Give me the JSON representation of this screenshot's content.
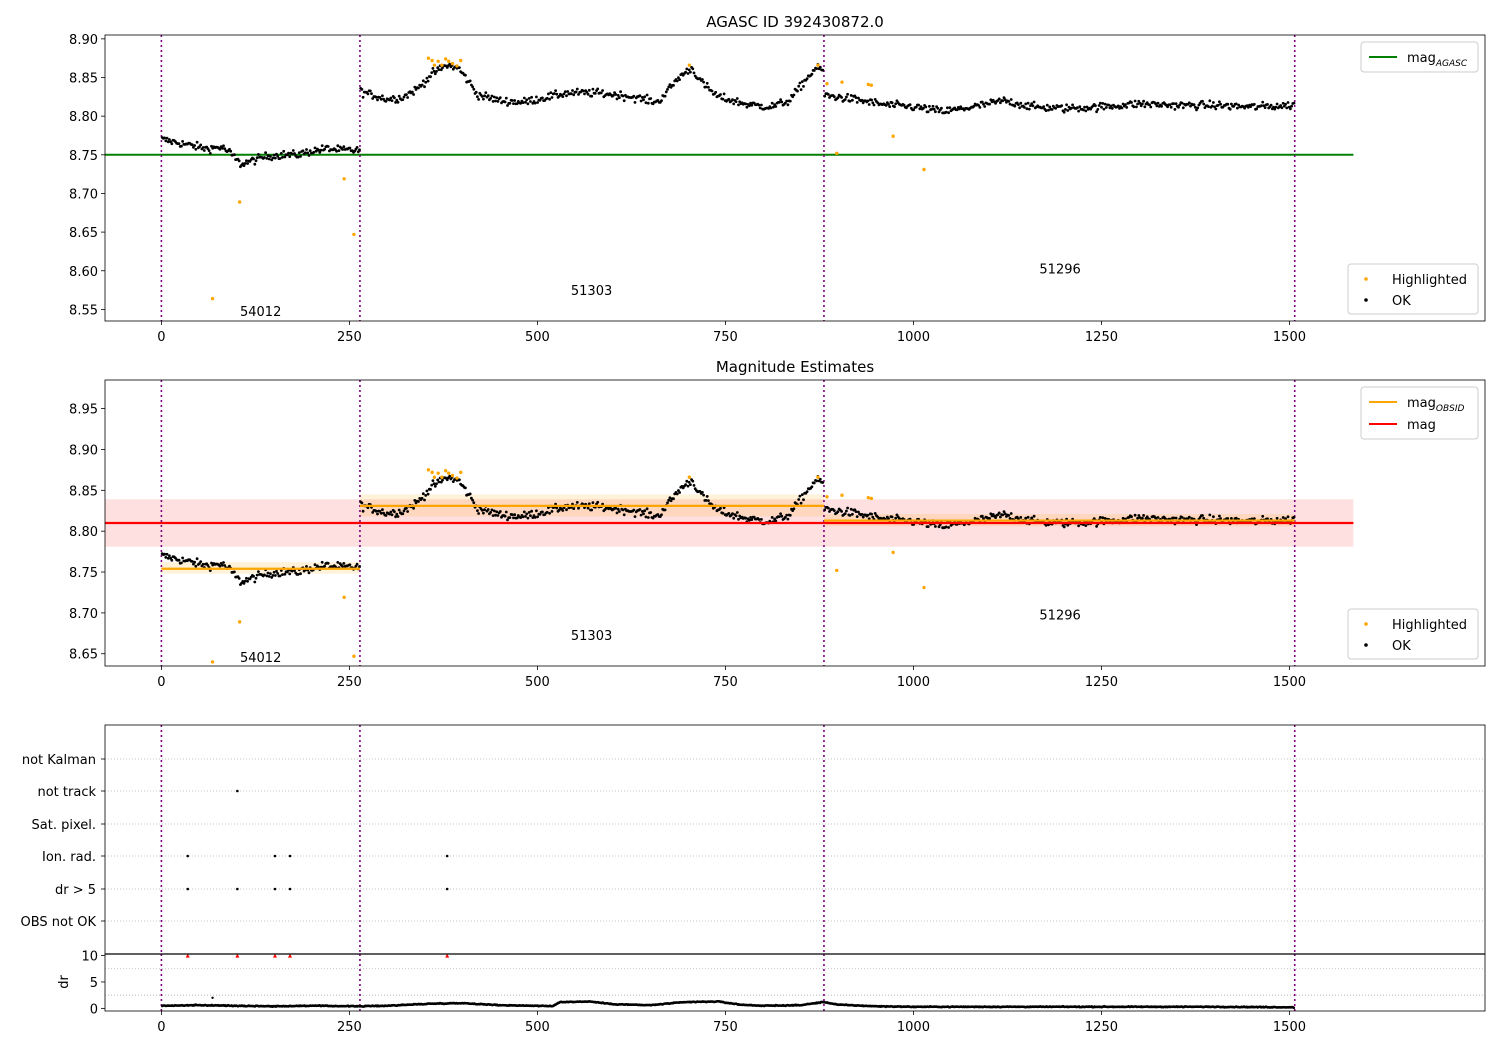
{
  "chart_data": [
    {
      "type": "scatter",
      "title": "AGASC ID 392430872.0",
      "xlabel": "",
      "ylabel": "",
      "xlim": [
        -75,
        1760
      ],
      "ylim": [
        8.535,
        8.905
      ],
      "xticks": [
        0,
        250,
        500,
        750,
        1000,
        1250,
        1500
      ],
      "yticks": [
        "8.55",
        "8.60",
        "8.65",
        "8.70",
        "8.75",
        "8.80",
        "8.85",
        "8.90"
      ],
      "grid": false,
      "obs_boundaries": [
        0,
        264,
        881,
        1507
      ],
      "obs_labels": [
        {
          "text": "54012",
          "x": 132,
          "y": 8.548
        },
        {
          "text": "51303",
          "x": 572,
          "y": 8.575
        },
        {
          "text": "51296",
          "x": 1195,
          "y": 8.603
        }
      ],
      "legend_upper": {
        "position": "top-right",
        "entries": [
          {
            "label": "mag",
            "sub": "AGASC",
            "color": "#008000"
          }
        ]
      },
      "legend_lower": {
        "position": "bottom-right",
        "entries": [
          {
            "label": "Highlighted",
            "color": "#ffa500"
          },
          {
            "label": "OK",
            "color": "#000000"
          }
        ]
      },
      "lines": [
        {
          "name": "mag_AGASC",
          "y": 8.75,
          "x_range": [
            -75,
            1585
          ],
          "color": "#008000"
        }
      ],
      "segments": [
        {
          "x_range": [
            0,
            264
          ],
          "points": [
            [
              0,
              8.77
            ],
            [
              20,
              8.766
            ],
            [
              40,
              8.762
            ],
            [
              60,
              8.758
            ],
            [
              80,
              8.76
            ],
            [
              92,
              8.752
            ],
            [
              105,
              8.738
            ],
            [
              120,
              8.742
            ],
            [
              140,
              8.748
            ],
            [
              160,
              8.75
            ],
            [
              180,
              8.75
            ],
            [
              200,
              8.755
            ],
            [
              220,
              8.758
            ],
            [
              240,
              8.756
            ],
            [
              264,
              8.756
            ]
          ]
        },
        {
          "x_range": [
            264,
            881
          ],
          "points": [
            [
              264,
              8.832
            ],
            [
              300,
              8.822
            ],
            [
              320,
              8.824
            ],
            [
              340,
              8.835
            ],
            [
              360,
              8.855
            ],
            [
              380,
              8.866
            ],
            [
              395,
              8.862
            ],
            [
              410,
              8.843
            ],
            [
              420,
              8.828
            ],
            [
              450,
              8.82
            ],
            [
              480,
              8.818
            ],
            [
              500,
              8.822
            ],
            [
              540,
              8.83
            ],
            [
              580,
              8.83
            ],
            [
              620,
              8.826
            ],
            [
              660,
              8.818
            ],
            [
              690,
              8.852
            ],
            [
              705,
              8.862
            ],
            [
              720,
              8.842
            ],
            [
              740,
              8.825
            ],
            [
              780,
              8.815
            ],
            [
              810,
              8.812
            ],
            [
              835,
              8.82
            ],
            [
              855,
              8.845
            ],
            [
              870,
              8.862
            ],
            [
              881,
              8.86
            ]
          ]
        },
        {
          "x_range": [
            881,
            1507
          ],
          "points": [
            [
              881,
              8.827
            ],
            [
              920,
              8.822
            ],
            [
              960,
              8.815
            ],
            [
              1000,
              8.812
            ],
            [
              1040,
              8.806
            ],
            [
              1080,
              8.812
            ],
            [
              1120,
              8.82
            ],
            [
              1160,
              8.812
            ],
            [
              1200,
              8.81
            ],
            [
              1250,
              8.812
            ],
            [
              1300,
              8.816
            ],
            [
              1350,
              8.814
            ],
            [
              1400,
              8.814
            ],
            [
              1450,
              8.812
            ],
            [
              1507,
              8.814
            ]
          ]
        }
      ],
      "highlighted": [
        [
          68,
          8.564
        ],
        [
          104,
          8.689
        ],
        [
          243,
          8.719
        ],
        [
          256,
          8.647
        ],
        [
          355,
          8.875
        ],
        [
          360,
          8.872
        ],
        [
          363,
          8.866
        ],
        [
          368,
          8.871
        ],
        [
          373,
          8.866
        ],
        [
          378,
          8.874
        ],
        [
          382,
          8.871
        ],
        [
          387,
          8.868
        ],
        [
          393,
          8.865
        ],
        [
          398,
          8.872
        ],
        [
          702,
          8.866
        ],
        [
          873,
          8.866
        ],
        [
          885,
          8.842
        ],
        [
          898,
          8.752
        ],
        [
          905,
          8.844
        ],
        [
          940,
          8.841
        ],
        [
          944,
          8.84
        ],
        [
          973,
          8.774
        ],
        [
          1014,
          8.731
        ]
      ]
    },
    {
      "type": "scatter",
      "title": "Magnitude Estimates",
      "xlabel": "",
      "ylabel": "",
      "xlim": [
        -75,
        1760
      ],
      "ylim": [
        8.635,
        8.985
      ],
      "xticks": [
        0,
        250,
        500,
        750,
        1000,
        1250,
        1500
      ],
      "yticks": [
        "8.65",
        "8.70",
        "8.75",
        "8.80",
        "8.85",
        "8.90",
        "8.95"
      ],
      "grid": false,
      "obs_boundaries": [
        0,
        264,
        881,
        1507
      ],
      "obs_labels": [
        {
          "text": "54012",
          "x": 132,
          "y": 8.646
        },
        {
          "text": "51303",
          "x": 572,
          "y": 8.673
        },
        {
          "text": "51296",
          "x": 1195,
          "y": 8.698
        }
      ],
      "legend_upper": {
        "position": "top-right",
        "entries": [
          {
            "label": "mag",
            "sub": "OBSID",
            "color": "#ffa500"
          },
          {
            "label": "mag",
            "sub": "",
            "color": "#ff0000"
          }
        ]
      },
      "legend_lower": {
        "position": "bottom-right",
        "entries": [
          {
            "label": "Highlighted",
            "color": "#ffa500"
          },
          {
            "label": "OK",
            "color": "#000000"
          }
        ]
      },
      "bands": [
        {
          "name": "mag",
          "y_range": [
            8.781,
            8.839
          ],
          "x_range": [
            -75,
            1585
          ],
          "color": "#ff0000",
          "opacity": 0.12
        },
        {
          "name": "mag_OBSID",
          "y_range": [
            8.748,
            8.762
          ],
          "x_range": [
            0,
            264
          ],
          "color": "#ffa500",
          "opacity": 0.15
        },
        {
          "name": "mag_OBSID",
          "y_range": [
            8.818,
            8.845
          ],
          "x_range": [
            264,
            881
          ],
          "color": "#ffa500",
          "opacity": 0.15
        },
        {
          "name": "mag_OBSID",
          "y_range": [
            8.806,
            8.821
          ],
          "x_range": [
            881,
            1507
          ],
          "color": "#ffa500",
          "opacity": 0.15
        }
      ],
      "lines": [
        {
          "name": "mag",
          "y": 8.81,
          "x_range": [
            -75,
            1585
          ],
          "color": "#ff0000"
        },
        {
          "name": "mag_OBSID",
          "y": 8.754,
          "x_range": [
            0,
            264
          ],
          "color": "#ffa500"
        },
        {
          "name": "mag_OBSID",
          "y": 8.831,
          "x_range": [
            264,
            881
          ],
          "color": "#ffa500"
        },
        {
          "name": "mag_OBSID",
          "y": 8.813,
          "x_range": [
            881,
            1507
          ],
          "color": "#ffa500"
        }
      ],
      "highlighted": [
        [
          68,
          8.64
        ],
        [
          104,
          8.689
        ],
        [
          243,
          8.719
        ],
        [
          256,
          8.647
        ],
        [
          355,
          8.875
        ],
        [
          360,
          8.872
        ],
        [
          363,
          8.866
        ],
        [
          368,
          8.871
        ],
        [
          373,
          8.866
        ],
        [
          378,
          8.874
        ],
        [
          382,
          8.871
        ],
        [
          387,
          8.868
        ],
        [
          393,
          8.865
        ],
        [
          398,
          8.872
        ],
        [
          702,
          8.866
        ],
        [
          873,
          8.866
        ],
        [
          885,
          8.842
        ],
        [
          898,
          8.752
        ],
        [
          905,
          8.844
        ],
        [
          940,
          8.841
        ],
        [
          944,
          8.84
        ],
        [
          973,
          8.774
        ],
        [
          1014,
          8.731
        ]
      ]
    },
    {
      "type": "scatter",
      "title": "",
      "xlabel": "",
      "ylabel": "",
      "xlim": [
        -75,
        1760
      ],
      "categories": [
        "not Kalman",
        "not track",
        "Sat. pixel.",
        "Ion. rad.",
        "dr > 5",
        "OBS not OK"
      ],
      "obs_boundaries": [
        0,
        264,
        881,
        1507
      ],
      "flags": [
        {
          "category": "not track",
          "x": [
            101
          ]
        },
        {
          "category": "Ion. rad.",
          "x": [
            35,
            151,
            171,
            380
          ]
        },
        {
          "category": "dr > 5",
          "x": [
            35,
            101,
            151,
            171,
            380
          ]
        }
      ]
    },
    {
      "type": "scatter",
      "title": "",
      "xlabel": "",
      "ylabel": "dr",
      "xlim": [
        -75,
        1760
      ],
      "ylim": [
        -0.5,
        10.3
      ],
      "xticks": [
        0,
        250,
        500,
        750,
        1000,
        1250,
        1500
      ],
      "yticks": [
        "0",
        "5",
        "10"
      ],
      "obs_boundaries": [
        0,
        264,
        881,
        1507
      ],
      "flagged_dr": [
        [
          35,
          10
        ],
        [
          101,
          10
        ],
        [
          151,
          10
        ],
        [
          171,
          10
        ],
        [
          380,
          10
        ]
      ],
      "outliers": [
        [
          68,
          2.0
        ]
      ],
      "dr_points": [
        [
          0,
          0.5
        ],
        [
          50,
          0.6
        ],
        [
          100,
          0.5
        ],
        [
          150,
          0.4
        ],
        [
          200,
          0.5
        ],
        [
          264,
          0.4
        ],
        [
          300,
          0.5
        ],
        [
          360,
          0.9
        ],
        [
          400,
          1.0
        ],
        [
          450,
          0.6
        ],
        [
          500,
          0.5
        ],
        [
          520,
          0.4
        ],
        [
          530,
          1.2
        ],
        [
          570,
          1.3
        ],
        [
          600,
          0.8
        ],
        [
          650,
          0.6
        ],
        [
          680,
          1.0
        ],
        [
          700,
          1.2
        ],
        [
          740,
          1.3
        ],
        [
          770,
          0.7
        ],
        [
          800,
          0.5
        ],
        [
          850,
          0.6
        ],
        [
          870,
          1.0
        ],
        [
          881,
          1.2
        ],
        [
          900,
          0.7
        ],
        [
          950,
          0.4
        ],
        [
          1000,
          0.3
        ],
        [
          1100,
          0.3
        ],
        [
          1200,
          0.3
        ],
        [
          1300,
          0.3
        ],
        [
          1400,
          0.3
        ],
        [
          1507,
          0.2
        ]
      ]
    }
  ]
}
